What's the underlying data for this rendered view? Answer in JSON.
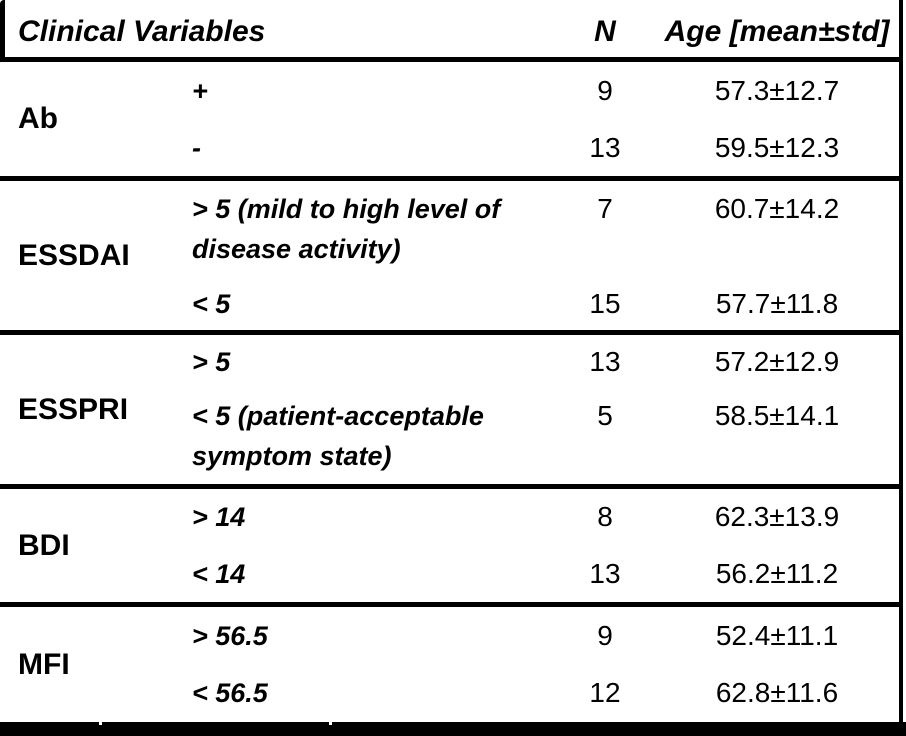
{
  "colors": {
    "background": "#ffffff",
    "text": "#000000",
    "rule": "#000000"
  },
  "table": {
    "headers": {
      "variable": "Clinical Variables",
      "n": "N",
      "age": "Age [mean±std]"
    },
    "groups": [
      {
        "label": "Ab",
        "rows": [
          {
            "category": "+",
            "n": "9",
            "age": "57.3±12.7"
          },
          {
            "category": "-",
            "n": "13",
            "age": "59.5±12.3"
          }
        ]
      },
      {
        "label": "ESSDAI",
        "rows": [
          {
            "category": "> 5 (mild to high level of disease activity)",
            "n": "7",
            "age": "60.7±14.2"
          },
          {
            "category": "< 5",
            "n": "15",
            "age": "57.7±11.8"
          }
        ]
      },
      {
        "label": "ESSPRI",
        "rows": [
          {
            "category": "> 5",
            "n": "13",
            "age": "57.2±12.9"
          },
          {
            "category": "< 5 (patient-acceptable symptom state)",
            "n": "5",
            "age": "58.5±14.1"
          }
        ]
      },
      {
        "label": "BDI",
        "rows": [
          {
            "category": "> 14",
            "n": "8",
            "age": "62.3±13.9"
          },
          {
            "category": "< 14",
            "n": "13",
            "age": "56.2±11.2"
          }
        ]
      },
      {
        "label": "MFI",
        "rows": [
          {
            "category": "> 56.5",
            "n": "9",
            "age": "52.4±11.1"
          },
          {
            "category": "< 56.5",
            "n": "12",
            "age": "62.8±11.6"
          }
        ]
      }
    ]
  }
}
